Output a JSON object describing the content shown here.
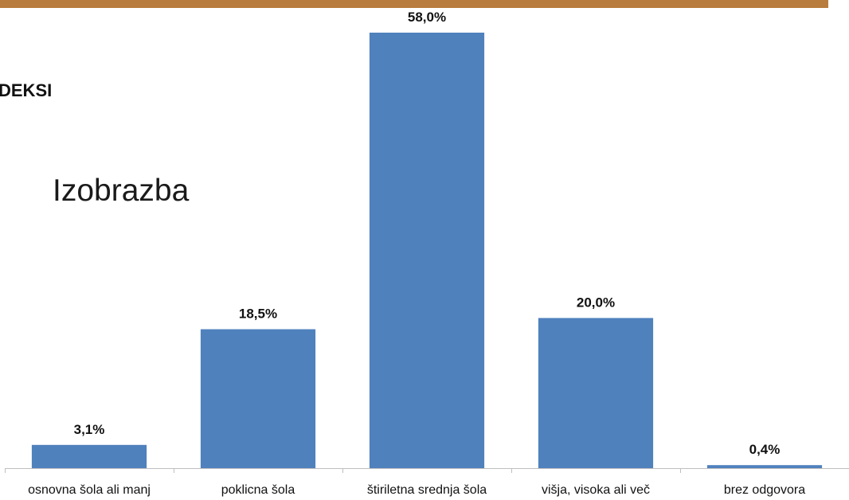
{
  "header": {
    "band_color": "#b87c3c",
    "side_text": "DEKSI"
  },
  "chart_data": {
    "type": "bar",
    "title": "Izobrazba",
    "categories": [
      "osnovna šola ali manj",
      "poklicna šola",
      "štiriletna srednja šola",
      "višja, visoka ali več",
      "brez odgovora"
    ],
    "values": [
      3.1,
      18.5,
      58.0,
      20.0,
      0.4
    ],
    "data_labels": [
      "3,1%",
      "18,5%",
      "58,0%",
      "20,0%",
      "0,4%"
    ],
    "ylim": [
      0,
      58.0
    ],
    "grid": false,
    "bar_color": "#4f81bd",
    "axis_color": "#bfbfbf"
  }
}
